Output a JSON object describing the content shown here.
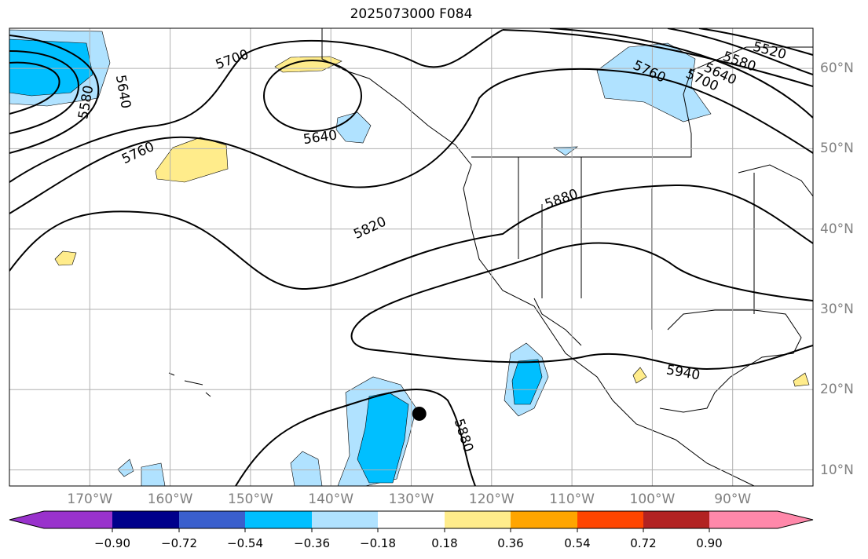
{
  "title": "2025073000 F084",
  "map": {
    "lon_range": [
      -180,
      -80
    ],
    "lat_range": [
      8,
      65
    ],
    "lon_ticks": [
      {
        "v": -170,
        "label": "170°W"
      },
      {
        "v": -160,
        "label": "160°W"
      },
      {
        "v": -150,
        "label": "150°W"
      },
      {
        "v": -140,
        "label": "140°W"
      },
      {
        "v": -130,
        "label": "130°W"
      },
      {
        "v": -120,
        "label": "120°W"
      },
      {
        "v": -110,
        "label": "110°W"
      },
      {
        "v": -100,
        "label": "100°W"
      },
      {
        "v": -90,
        "label": "90°W"
      }
    ],
    "lat_ticks": [
      {
        "v": 60,
        "label": "60°N"
      },
      {
        "v": 50,
        "label": "50°N"
      },
      {
        "v": 40,
        "label": "40°N"
      },
      {
        "v": 30,
        "label": "30°N"
      },
      {
        "v": 20,
        "label": "20°N"
      },
      {
        "v": 10,
        "label": "10°N"
      }
    ],
    "contour_labels": [
      "5700",
      "5580",
      "5640",
      "5760",
      "5640",
      "5820",
      "5880",
      "5940",
      "5880",
      "5520",
      "5580",
      "5640",
      "5700",
      "5760"
    ],
    "storm_marker": {
      "lon": -129,
      "lat": 17
    }
  },
  "colorbar": {
    "colors": [
      "#9932cc",
      "#00008b",
      "#3a5fcd",
      "#00bfff",
      "#b0e2ff",
      "#ffffff",
      "#ffec8b",
      "#ffa500",
      "#ff4500",
      "#b22222",
      "#ff88aa"
    ],
    "ticks": [
      "−0.90",
      "−0.72",
      "−0.54",
      "−0.36",
      "−0.18",
      "0.18",
      "0.36",
      "0.54",
      "0.72",
      "0.90"
    ]
  }
}
